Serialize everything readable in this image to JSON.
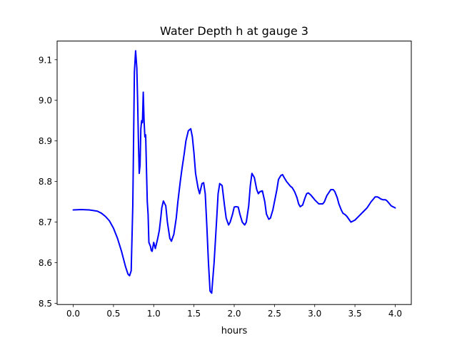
{
  "chart_data": {
    "type": "line",
    "title": "Water Depth h at gauge 3",
    "xlabel": "hours",
    "ylabel": "",
    "xlim": [
      -0.2,
      4.2
    ],
    "ylim": [
      8.497,
      9.146
    ],
    "xticks": [
      0.0,
      0.5,
      1.0,
      1.5,
      2.0,
      2.5,
      3.0,
      3.5,
      4.0
    ],
    "xtick_labels": [
      "0.0",
      "0.5",
      "1.0",
      "1.5",
      "2.0",
      "2.5",
      "3.0",
      "3.5",
      "4.0"
    ],
    "yticks": [
      8.5,
      8.6,
      8.7,
      8.8,
      8.9,
      9.0,
      9.1
    ],
    "ytick_labels": [
      "8.5",
      "8.6",
      "8.7",
      "8.8",
      "8.9",
      "9.0",
      "9.1"
    ],
    "grid": false,
    "legend": "none",
    "series": [
      {
        "color": "#0000ff",
        "x": [
          0.0,
          0.1,
          0.2,
          0.3,
          0.35,
          0.4,
          0.45,
          0.5,
          0.55,
          0.6,
          0.65,
          0.68,
          0.7,
          0.72,
          0.74,
          0.76,
          0.775,
          0.79,
          0.8,
          0.81,
          0.82,
          0.83,
          0.84,
          0.85,
          0.86,
          0.87,
          0.88,
          0.89,
          0.9,
          0.91,
          0.92,
          0.93,
          0.94,
          0.95,
          0.96,
          0.97,
          0.98,
          1.0,
          1.02,
          1.05,
          1.07,
          1.09,
          1.1,
          1.12,
          1.15,
          1.17,
          1.2,
          1.22,
          1.25,
          1.28,
          1.3,
          1.33,
          1.35,
          1.38,
          1.4,
          1.43,
          1.46,
          1.48,
          1.5,
          1.52,
          1.55,
          1.57,
          1.6,
          1.62,
          1.64,
          1.66,
          1.68,
          1.7,
          1.72,
          1.75,
          1.78,
          1.8,
          1.82,
          1.85,
          1.88,
          1.9,
          1.93,
          1.95,
          1.98,
          2.0,
          2.02,
          2.05,
          2.07,
          2.1,
          2.13,
          2.15,
          2.18,
          2.2,
          2.22,
          2.25,
          2.28,
          2.3,
          2.32,
          2.35,
          2.38,
          2.4,
          2.43,
          2.45,
          2.48,
          2.5,
          2.53,
          2.55,
          2.58,
          2.6,
          2.62,
          2.65,
          2.7,
          2.72,
          2.75,
          2.78,
          2.8,
          2.82,
          2.85,
          2.88,
          2.9,
          2.92,
          2.95,
          2.98,
          3.0,
          3.05,
          3.1,
          3.12,
          3.15,
          3.2,
          3.23,
          3.25,
          3.28,
          3.3,
          3.33,
          3.35,
          3.38,
          3.4,
          3.45,
          3.5,
          3.55,
          3.6,
          3.65,
          3.7,
          3.73,
          3.75,
          3.78,
          3.8,
          3.82,
          3.85,
          3.88,
          3.9,
          3.93,
          3.95,
          3.98,
          4.0
        ],
        "y": [
          8.73,
          8.731,
          8.73,
          8.727,
          8.722,
          8.714,
          8.703,
          8.685,
          8.66,
          8.628,
          8.59,
          8.572,
          8.568,
          8.58,
          8.74,
          9.07,
          9.122,
          9.08,
          9.0,
          8.9,
          8.82,
          8.84,
          8.93,
          8.95,
          8.945,
          9.02,
          8.95,
          8.91,
          8.915,
          8.83,
          8.75,
          8.72,
          8.65,
          8.645,
          8.64,
          8.63,
          8.628,
          8.65,
          8.635,
          8.66,
          8.68,
          8.715,
          8.735,
          8.752,
          8.74,
          8.7,
          8.66,
          8.653,
          8.67,
          8.71,
          8.75,
          8.8,
          8.83,
          8.87,
          8.9,
          8.925,
          8.93,
          8.91,
          8.87,
          8.82,
          8.785,
          8.77,
          8.795,
          8.797,
          8.77,
          8.69,
          8.6,
          8.53,
          8.525,
          8.6,
          8.7,
          8.77,
          8.795,
          8.79,
          8.74,
          8.71,
          8.693,
          8.7,
          8.72,
          8.737,
          8.738,
          8.737,
          8.72,
          8.7,
          8.693,
          8.7,
          8.74,
          8.79,
          8.82,
          8.81,
          8.78,
          8.77,
          8.775,
          8.777,
          8.75,
          8.72,
          8.707,
          8.71,
          8.73,
          8.75,
          8.78,
          8.805,
          8.815,
          8.817,
          8.81,
          8.8,
          8.788,
          8.785,
          8.775,
          8.76,
          8.745,
          8.738,
          8.742,
          8.76,
          8.77,
          8.772,
          8.767,
          8.76,
          8.755,
          8.745,
          8.745,
          8.75,
          8.765,
          8.78,
          8.78,
          8.775,
          8.76,
          8.745,
          8.73,
          8.722,
          8.718,
          8.714,
          8.7,
          8.705,
          8.715,
          8.725,
          8.735,
          8.75,
          8.757,
          8.762,
          8.762,
          8.76,
          8.757,
          8.755,
          8.755,
          8.752,
          8.745,
          8.74,
          8.737,
          8.735
        ]
      }
    ]
  }
}
